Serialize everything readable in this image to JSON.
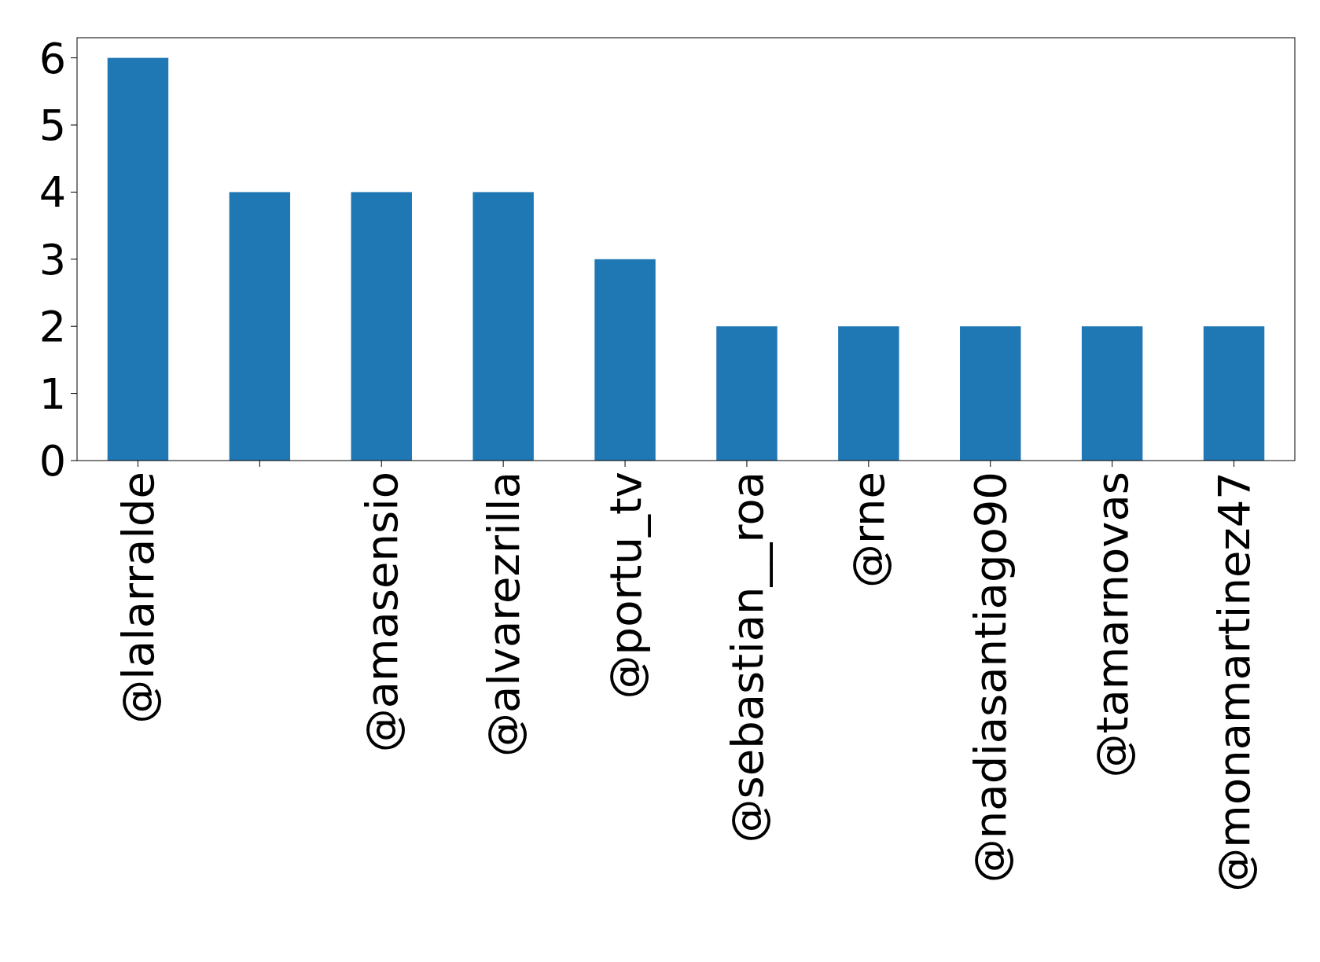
{
  "chart_data": {
    "type": "bar",
    "categories": [
      "@lalarralde",
      null,
      "@amasensio",
      "@alvarezrilla",
      "@portu_tv",
      "@sebastian__roa",
      "@rne",
      "@nadiasantiago90",
      "@tamarnovas",
      "@monamartinez47"
    ],
    "values": [
      6,
      4,
      4,
      4,
      3,
      2,
      2,
      2,
      2,
      2
    ],
    "color": "#1f77b4",
    "ylim": [
      0,
      6.3
    ],
    "yticks": [
      0,
      1,
      2,
      3,
      4,
      5,
      6
    ],
    "grid": false
  }
}
